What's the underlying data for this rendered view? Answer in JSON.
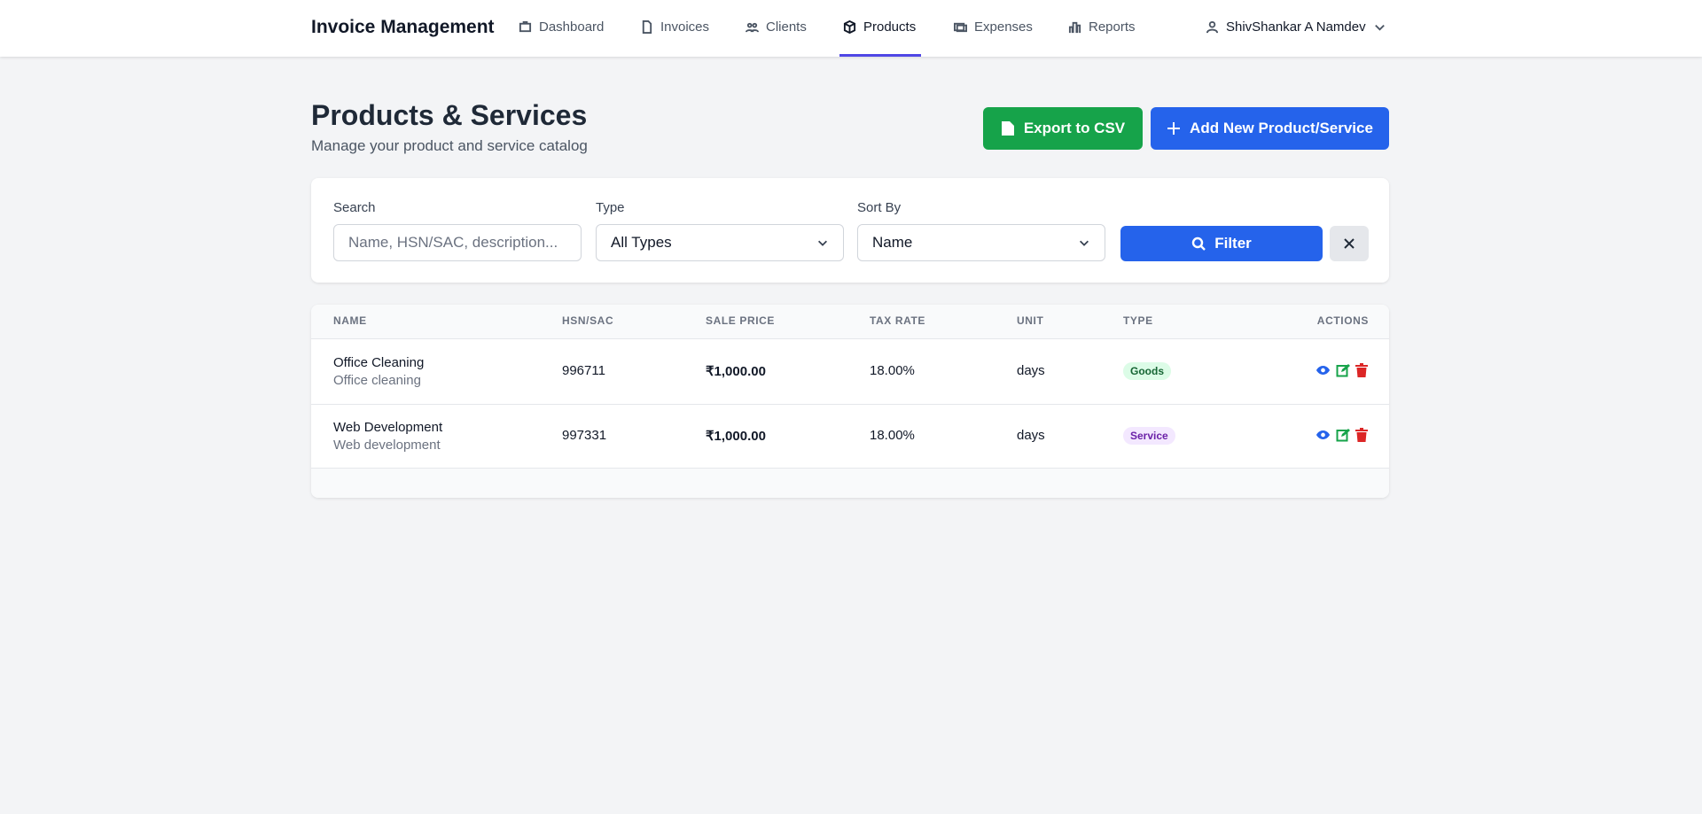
{
  "navbar": {
    "brand": "Invoice Management",
    "items": [
      "Dashboard",
      "Invoices",
      "Clients",
      "Products",
      "Expenses",
      "Reports"
    ],
    "active": "Products",
    "user": "ShivShankar A Namdev"
  },
  "header": {
    "title": "Products & Services",
    "subtitle": "Manage your product and service catalog",
    "export_button": "Export to CSV",
    "add_button": "Add New Product/Service"
  },
  "filters": {
    "search_label": "Search",
    "search_placeholder": "Name, HSN/SAC, description...",
    "type_label": "Type",
    "type_value": "All Types",
    "sort_label": "Sort By",
    "sort_value": "Name",
    "filter_button": "Filter"
  },
  "table": {
    "columns": [
      "NAME",
      "HSN/SAC",
      "SALE PRICE",
      "TAX RATE",
      "UNIT",
      "TYPE",
      "ACTIONS"
    ],
    "rows": [
      {
        "name": "Office Cleaning",
        "description": "Office cleaning",
        "hsn": "996711",
        "price": "₹1,000.00",
        "tax": "18.00%",
        "unit": "days",
        "type": "Goods"
      },
      {
        "name": "Web Development",
        "description": "Web development",
        "hsn": "997331",
        "price": "₹1,000.00",
        "tax": "18.00%",
        "unit": "days",
        "type": "Service"
      }
    ]
  }
}
